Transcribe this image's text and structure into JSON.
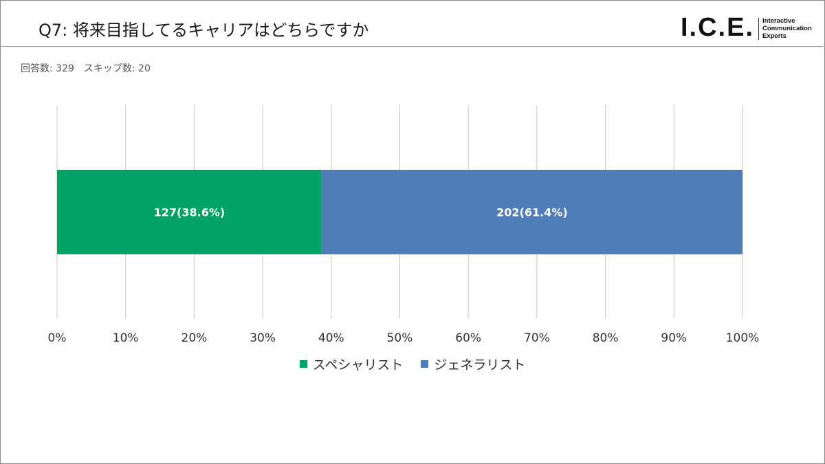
{
  "header": {
    "title": "Q7: 将来目指してるキャリアはどちらですか",
    "logo": {
      "main": "I.C.E.",
      "sub": [
        "Interactive",
        "Communication",
        "Experts"
      ]
    }
  },
  "stats": {
    "responses": "回答数: 329",
    "skips": "スキップ数: 20"
  },
  "chart_data": {
    "type": "bar",
    "orientation": "horizontal",
    "stacked": "percent",
    "xlim": [
      0,
      100
    ],
    "x_ticks": [
      "0%",
      "10%",
      "20%",
      "30%",
      "40%",
      "50%",
      "60%",
      "70%",
      "80%",
      "90%",
      "100%"
    ],
    "grid": "vertical",
    "legend_position": "bottom",
    "series": [
      {
        "name": "スペシャリスト",
        "count": 127,
        "percent": 38.6,
        "label": "127(38.6%)",
        "color": "#00a363"
      },
      {
        "name": "ジェネラリスト",
        "count": 202,
        "percent": 61.4,
        "label": "202(61.4%)",
        "color": "#4f7db8"
      }
    ]
  }
}
